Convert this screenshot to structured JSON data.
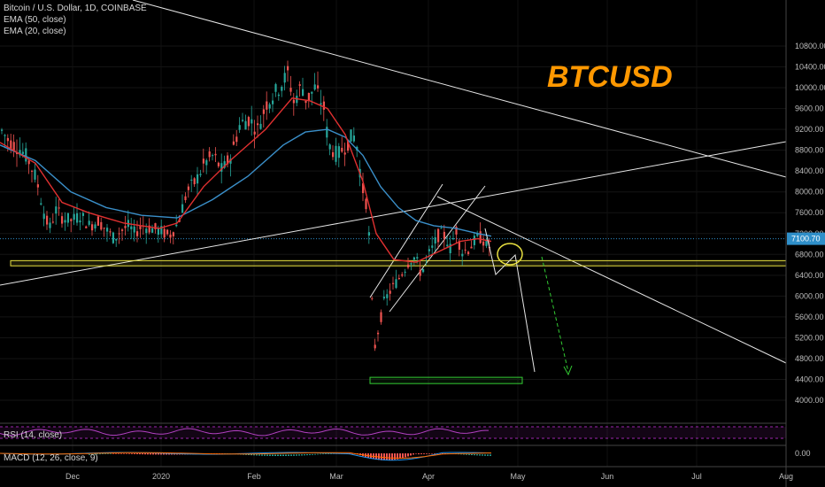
{
  "legend": {
    "symbol": "Bitcoin / U.S. Dollar, 1D, COINBASE",
    "ema50": "EMA (50, close)",
    "ema20": "EMA (20, close)"
  },
  "annotation": {
    "ticker": "BTCUSD"
  },
  "rsi_label": "RSI (14, close)",
  "macd_label": "MACD (12, 26, close, 9)",
  "colors": {
    "background": "#000000",
    "ema50": "#3a8fc9",
    "ema20": "#e03030",
    "up": "#26a69a",
    "down": "#ef5350",
    "zone": "#e8e040",
    "target": "#33cc33",
    "ticker": "#ff9800",
    "rsi": "#9c27b0"
  },
  "chart_data": {
    "type": "candlestick",
    "price_axis": {
      "ticks": [
        "10800.00",
        "10400.00",
        "10000.00",
        "9600.00",
        "9200.00",
        "8800.00",
        "8400.00",
        "8000.00",
        "7600.00",
        "7200.00",
        "6800.00",
        "6400.00",
        "6000.00",
        "5600.00",
        "5200.00",
        "4800.00",
        "4400.00",
        "4000.00"
      ],
      "current_price": "7100.70"
    },
    "time_axis": [
      "Dec",
      "2020",
      "Feb",
      "Mar",
      "Apr",
      "May",
      "Jun",
      "Jul",
      "Aug"
    ],
    "macd_axis": [
      "0.00"
    ],
    "series": [
      {
        "name": "EMA (50, close)",
        "color": "#3a8fc9"
      },
      {
        "name": "EMA (20, close)",
        "color": "#e03030"
      }
    ],
    "price_path": [
      [
        0,
        9200
      ],
      [
        10,
        8950
      ],
      [
        20,
        8850
      ],
      [
        30,
        8650
      ],
      [
        40,
        8250
      ],
      [
        50,
        7500
      ],
      [
        55,
        7300
      ],
      [
        62,
        7650
      ],
      [
        70,
        7500
      ],
      [
        80,
        7450
      ],
      [
        90,
        7550
      ],
      [
        100,
        7350
      ],
      [
        110,
        7450
      ],
      [
        120,
        7250
      ],
      [
        128,
        7100
      ],
      [
        135,
        7250
      ],
      [
        145,
        7350
      ],
      [
        150,
        7200
      ],
      [
        160,
        7350
      ],
      [
        170,
        7300
      ],
      [
        180,
        7250
      ],
      [
        190,
        7150
      ],
      [
        200,
        7400
      ],
      [
        210,
        8000
      ],
      [
        220,
        8200
      ],
      [
        230,
        8550
      ],
      [
        240,
        8700
      ],
      [
        250,
        8400
      ],
      [
        260,
        8700
      ],
      [
        270,
        9300
      ],
      [
        280,
        9400
      ],
      [
        290,
        9200
      ],
      [
        300,
        9700
      ],
      [
        310,
        9900
      ],
      [
        320,
        10150
      ],
      [
        325,
        10300
      ],
      [
        330,
        9700
      ],
      [
        340,
        10050
      ],
      [
        345,
        9750
      ],
      [
        355,
        10000
      ],
      [
        365,
        9600
      ],
      [
        370,
        8900
      ],
      [
        380,
        8700
      ],
      [
        390,
        8900
      ],
      [
        398,
        9100
      ],
      [
        402,
        8900
      ],
      [
        408,
        8100
      ],
      [
        414,
        7700
      ],
      [
        418,
        6500
      ],
      [
        421,
        4900
      ],
      [
        427,
        5400
      ],
      [
        433,
        5900
      ],
      [
        440,
        6100
      ],
      [
        448,
        6300
      ],
      [
        455,
        6500
      ],
      [
        462,
        6700
      ],
      [
        468,
        6750
      ],
      [
        475,
        6400
      ],
      [
        480,
        6700
      ],
      [
        487,
        6900
      ],
      [
        495,
        7200
      ],
      [
        502,
        7150
      ],
      [
        508,
        6900
      ],
      [
        514,
        7300
      ],
      [
        520,
        6850
      ],
      [
        528,
        6900
      ],
      [
        535,
        7050
      ],
      [
        540,
        7150
      ],
      [
        546,
        7050
      ],
      [
        551,
        6900
      ],
      [
        555,
        7100
      ]
    ],
    "ema20_path": [
      [
        0,
        8950
      ],
      [
        40,
        8550
      ],
      [
        70,
        7800
      ],
      [
        100,
        7600
      ],
      [
        140,
        7400
      ],
      [
        180,
        7300
      ],
      [
        200,
        7400
      ],
      [
        230,
        8100
      ],
      [
        260,
        8600
      ],
      [
        300,
        9200
      ],
      [
        330,
        9800
      ],
      [
        350,
        9750
      ],
      [
        370,
        9600
      ],
      [
        390,
        9100
      ],
      [
        410,
        8200
      ],
      [
        425,
        7200
      ],
      [
        445,
        6700
      ],
      [
        470,
        6650
      ],
      [
        495,
        6850
      ],
      [
        520,
        7050
      ],
      [
        540,
        7100
      ],
      [
        555,
        7050
      ]
    ],
    "ema50_path": [
      [
        0,
        8900
      ],
      [
        40,
        8600
      ],
      [
        80,
        8000
      ],
      [
        120,
        7700
      ],
      [
        160,
        7550
      ],
      [
        200,
        7500
      ],
      [
        240,
        7850
      ],
      [
        280,
        8300
      ],
      [
        320,
        8900
      ],
      [
        345,
        9150
      ],
      [
        370,
        9200
      ],
      [
        390,
        9050
      ],
      [
        410,
        8700
      ],
      [
        430,
        8100
      ],
      [
        450,
        7700
      ],
      [
        470,
        7450
      ],
      [
        490,
        7350
      ],
      [
        515,
        7300
      ],
      [
        540,
        7200
      ],
      [
        555,
        7150
      ]
    ],
    "support_zone": [
      6580,
      6680
    ],
    "target_zone": [
      4320,
      4440
    ]
  }
}
